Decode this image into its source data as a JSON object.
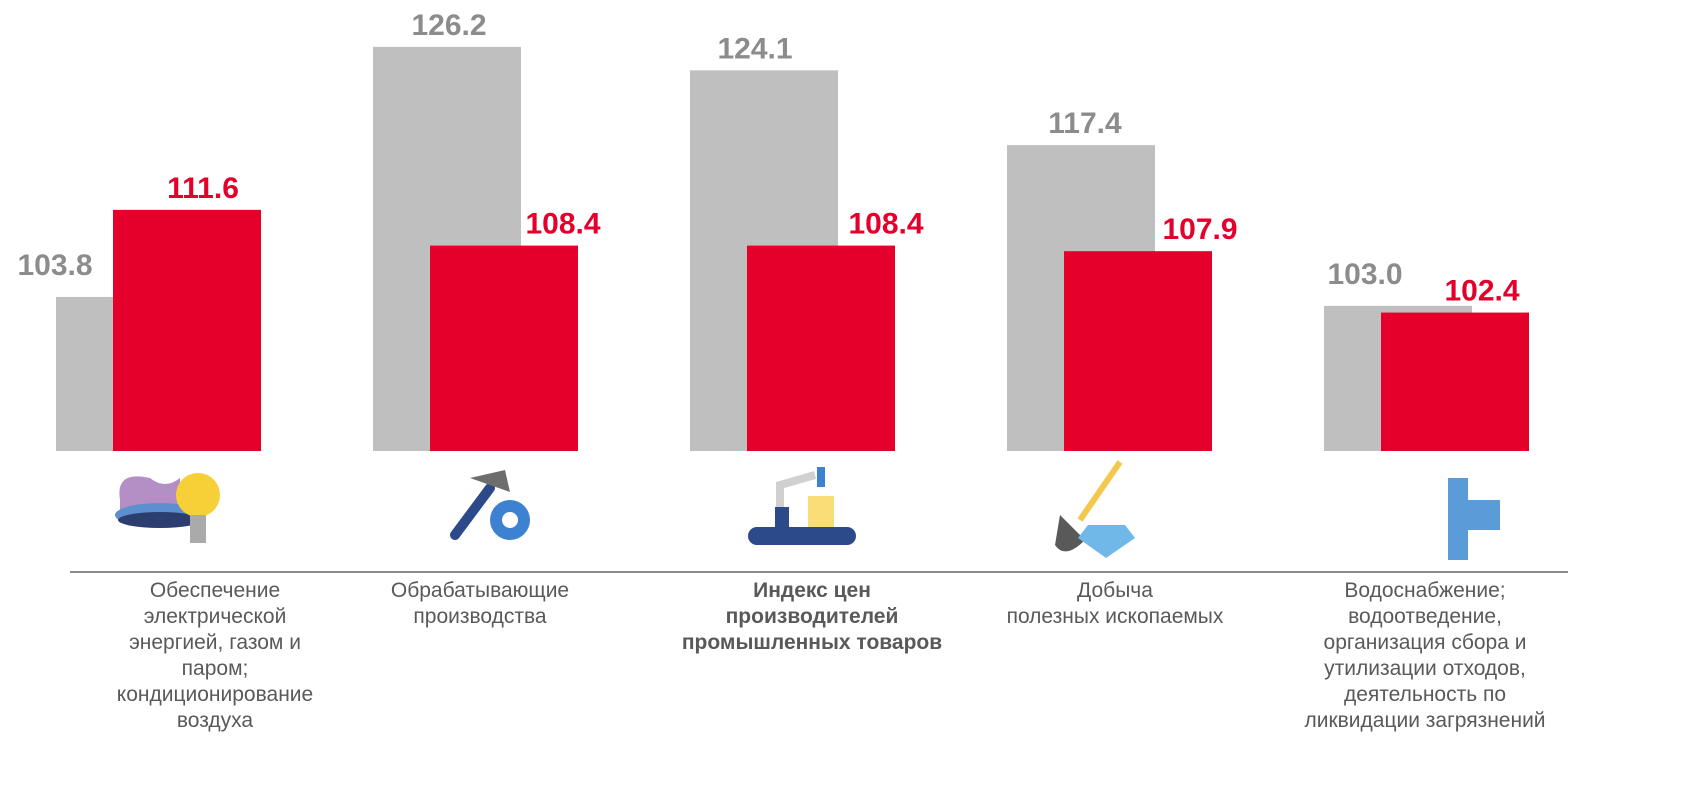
{
  "chart_data": {
    "type": "bar",
    "categories": [
      "Обеспечение\nэлектрической\nэнергией, газом и\nпаром;\nкондиционирование\nвоздуха",
      "Обрабатывающие\nпроизводства",
      "Индекс цен\nпроизводителей\nпромышленных товаров",
      "Добыча\nполезных ископаемых",
      "Водоснабжение;\nводоотведение,\nорганизация сбора и\nутилизации отходов,\nдеятельность по\nликвидации загрязнений"
    ],
    "series": [
      {
        "color": "#bfbfbf",
        "values": [
          103.8,
          126.2,
          124.1,
          117.4,
          103.0
        ],
        "value_labels": [
          "103.8",
          "126.2",
          "124.1",
          "117.4",
          "103.0"
        ]
      },
      {
        "color": "#e4002b",
        "values": [
          111.6,
          108.4,
          108.4,
          107.9,
          102.4
        ]
      }
    ],
    "ylim": [
      90,
      130.4
    ]
  }
}
